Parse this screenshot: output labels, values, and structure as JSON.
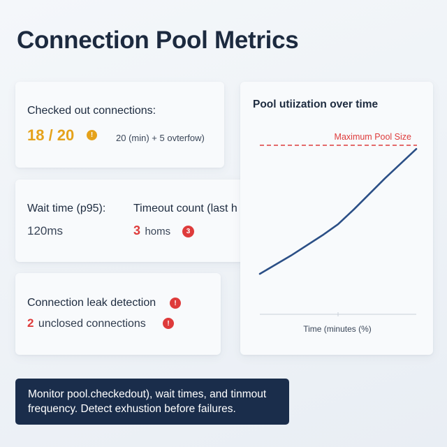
{
  "page": {
    "title": "Connection Pool Metrics"
  },
  "checked_out": {
    "label": "Checked out connections:",
    "value": "18 / 20",
    "icon": "warning-icon",
    "icon_glyph": "!",
    "detail": "20 (min) + 5 ovterfow)",
    "value_color": "#e5a21b"
  },
  "wait": {
    "label": "Wait time (p95):",
    "value": "120ms"
  },
  "timeout": {
    "label": "Timeout count (last h",
    "value_number": "3",
    "value_unit": "homs",
    "badge": "3",
    "value_color": "#de3b3b"
  },
  "leak": {
    "label": "Connection leak detection",
    "label_icon_glyph": "!",
    "value_number": "2",
    "value_text": "unclosed connections",
    "value_icon_glyph": "!"
  },
  "chart": {
    "title": "Pool utiization over time",
    "threshold_label": "Maximum Pool Size",
    "xlabel": "Time (minutes (%)",
    "threshold_color": "#de3b3b",
    "line_color": "#2b4f86"
  },
  "chart_data": {
    "type": "line",
    "title": "Pool utiization over time",
    "xlabel": "Time (minutes (%)",
    "ylabel": "",
    "xlim": [
      0,
      100
    ],
    "ylim": [
      0,
      100
    ],
    "grid": false,
    "threshold": {
      "label": "Maximum Pool Size",
      "value": 92
    },
    "series": [
      {
        "x": [
          0,
          20,
          40,
          50,
          60,
          80,
          100
        ],
        "values": [
          22,
          32,
          43,
          49,
          57,
          74,
          90
        ]
      }
    ]
  },
  "tip": {
    "text": "Monitor pool.checkedout), wait times, and tinmout frequency. Detect exhustion before failures."
  }
}
